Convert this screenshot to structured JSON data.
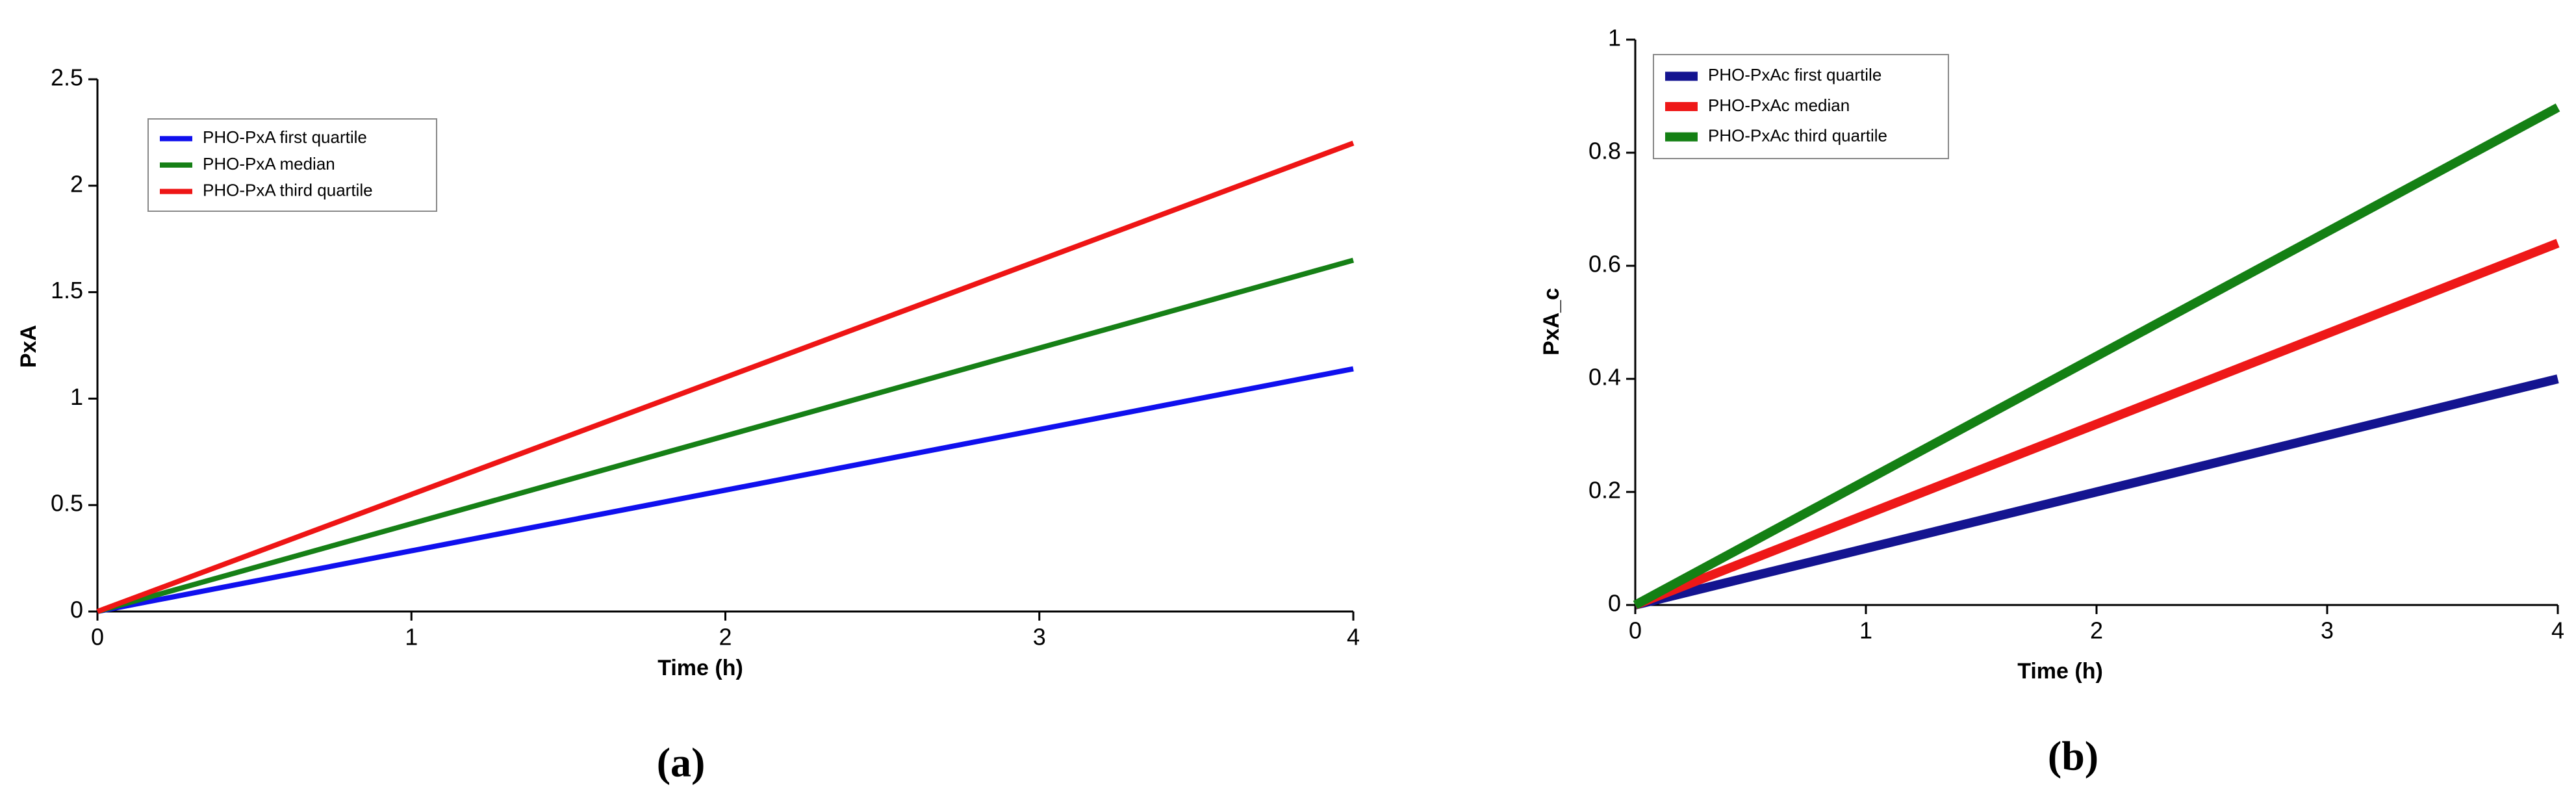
{
  "chart_data": [
    {
      "type": "line",
      "x_label": "Time (h)",
      "y_label": "PxA",
      "caption": "(a)",
      "xlim": [
        0,
        4
      ],
      "ylim": [
        0,
        2.5
      ],
      "xticks": [
        0,
        1,
        2,
        3,
        4
      ],
      "yticks": [
        0,
        0.5,
        1,
        1.5,
        2,
        2.5
      ],
      "x": [
        0,
        4
      ],
      "legend": "upper left",
      "series": [
        {
          "name": "PHO-PxA first quartile",
          "color": "#1010ee",
          "values": [
            0,
            1.14
          ]
        },
        {
          "name": "PHO-PxA median",
          "color": "#168016",
          "values": [
            0,
            1.65
          ]
        },
        {
          "name": "PHO-PxA third quartile",
          "color": "#ee1515",
          "values": [
            0,
            2.2
          ]
        }
      ]
    },
    {
      "type": "line",
      "x_label": "Time (h)",
      "y_label": "PxA_c",
      "caption": "(b)",
      "xlim": [
        0,
        4
      ],
      "ylim": [
        0,
        1
      ],
      "xticks": [
        0,
        1,
        2,
        3,
        4
      ],
      "yticks": [
        0,
        0.2,
        0.4,
        0.6,
        0.8,
        1
      ],
      "x": [
        0,
        4
      ],
      "legend": "upper left",
      "series": [
        {
          "name": "PHO-PxAc first quartile",
          "color": "#141490",
          "values": [
            0,
            0.4
          ]
        },
        {
          "name": "PHO-PxAc median",
          "color": "#ee1818",
          "values": [
            0,
            0.64
          ]
        },
        {
          "name": "PHO-PxAc third quartile",
          "color": "#148014",
          "values": [
            0,
            0.88
          ]
        }
      ]
    }
  ]
}
